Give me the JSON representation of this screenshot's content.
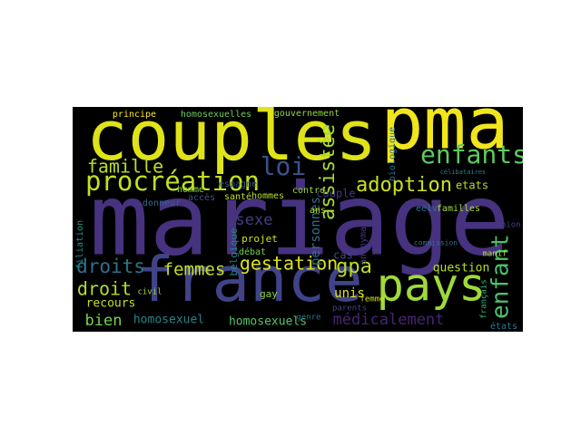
{
  "chart_data": {
    "type": "wordcloud",
    "background": "#000000",
    "words": [
      {
        "text": "mariage",
        "value": 110,
        "color": "#46327e"
      },
      {
        "text": "pma",
        "value": 78,
        "color": "#f1e51d"
      },
      {
        "text": "couples",
        "value": 76,
        "color": "#dfe318"
      },
      {
        "text": "france",
        "value": 69,
        "color": "#404387"
      },
      {
        "text": "pays",
        "value": 50,
        "color": "#9fda3a"
      },
      {
        "text": "enfants",
        "value": 28,
        "color": "#5ec962"
      },
      {
        "text": "procréation",
        "value": 29,
        "color": "#c0df25"
      },
      {
        "text": "loi",
        "value": 28,
        "color": "#3b528b"
      },
      {
        "text": "famille",
        "value": 20,
        "color": "#b8de29"
      },
      {
        "text": "assistée",
        "value": 22,
        "color": "#a8db34"
      },
      {
        "text": "adoption",
        "value": 22,
        "color": "#cde11d"
      },
      {
        "text": "enfant",
        "value": 26,
        "color": "#4ac16d"
      },
      {
        "text": "droits",
        "value": 21,
        "color": "#2c728e"
      },
      {
        "text": "femmes",
        "value": 19,
        "color": "#c5e021"
      },
      {
        "text": "gestation",
        "value": 20,
        "color": "#dde318"
      },
      {
        "text": "gpa",
        "value": 22,
        "color": "#bade28"
      },
      {
        "text": "droit",
        "value": 20,
        "color": "#b0dd2f"
      },
      {
        "text": "recours",
        "value": 13,
        "color": "#c2df23"
      },
      {
        "text": "bien",
        "value": 17,
        "color": "#75d054"
      },
      {
        "text": "homosexuel",
        "value": 13,
        "color": "#25848e"
      },
      {
        "text": "homosexuels",
        "value": 13,
        "color": "#52c569"
      },
      {
        "text": "médicalement",
        "value": 17,
        "color": "#482475"
      },
      {
        "text": "sexe",
        "value": 17,
        "color": "#433e85"
      },
      {
        "text": "personnes",
        "value": 14,
        "color": "#2d708e"
      },
      {
        "text": "unis",
        "value": 14,
        "color": "#e5e419"
      },
      {
        "text": "question",
        "value": 13,
        "color": "#bade28"
      },
      {
        "text": "belgique",
        "value": 11,
        "color": "#26828e"
      },
      {
        "text": "projet",
        "value": 11,
        "color": "#d0e11c"
      },
      {
        "text": "débat",
        "value": 10,
        "color": "#7ad151"
      },
      {
        "text": "gouvernement",
        "value": 10,
        "color": "#8fd744"
      },
      {
        "text": "principe",
        "value": 10,
        "color": "#fde725"
      },
      {
        "text": "homosexuelles",
        "value": 10,
        "color": "#6ccd5a"
      },
      {
        "text": "homme",
        "value": 10,
        "color": "#90d743"
      },
      {
        "text": "espagne",
        "value": 10,
        "color": "#39568c"
      },
      {
        "text": "santé",
        "value": 10,
        "color": "#c2df23"
      },
      {
        "text": "etats",
        "value": 12,
        "color": "#b5de2b"
      },
      {
        "text": "cas",
        "value": 12,
        "color": "#3e4c8a"
      },
      {
        "text": "contre",
        "value": 10,
        "color": "#9bd93c"
      },
      {
        "text": "anonymat",
        "value": 10,
        "color": "#443a83"
      },
      {
        "text": "eelv",
        "value": 10,
        "color": "#2a788e"
      },
      {
        "text": "familles",
        "value": 10,
        "color": "#a5db36"
      },
      {
        "text": "états",
        "value": 10,
        "color": "#2a788e"
      },
      {
        "text": "français",
        "value": 9,
        "color": "#35b779"
      },
      {
        "text": "parents",
        "value": 9,
        "color": "#404688"
      },
      {
        "text": "femme",
        "value": 9,
        "color": "#d2e21b"
      },
      {
        "text": "genre",
        "value": 9,
        "color": "#2e6e8e"
      },
      {
        "text": "gay",
        "value": 11,
        "color": "#8bd646"
      },
      {
        "text": "ans",
        "value": 10,
        "color": "#bddf26"
      },
      {
        "text": "hommes",
        "value": 10,
        "color": "#b5de2b"
      },
      {
        "text": "accès",
        "value": 10,
        "color": "#3b528b"
      },
      {
        "text": "donneur",
        "value": 10,
        "color": "#31678e"
      },
      {
        "text": "filiation",
        "value": 10,
        "color": "#20928c"
      },
      {
        "text": "civil",
        "value": 9,
        "color": "#a0da39"
      },
      {
        "text": "biologique",
        "value": 10,
        "color": "#2c728e"
      },
      {
        "text": "union",
        "value": 9,
        "color": "#414487"
      },
      {
        "text": "manif",
        "value": 9,
        "color": "#bddf26"
      },
      {
        "text": "commission",
        "value": 8,
        "color": "#2d708e"
      },
      {
        "text": "célibataires",
        "value": 7,
        "color": "#26828e"
      },
      {
        "text": "couple",
        "value": 12,
        "color": "#443983"
      }
    ]
  }
}
